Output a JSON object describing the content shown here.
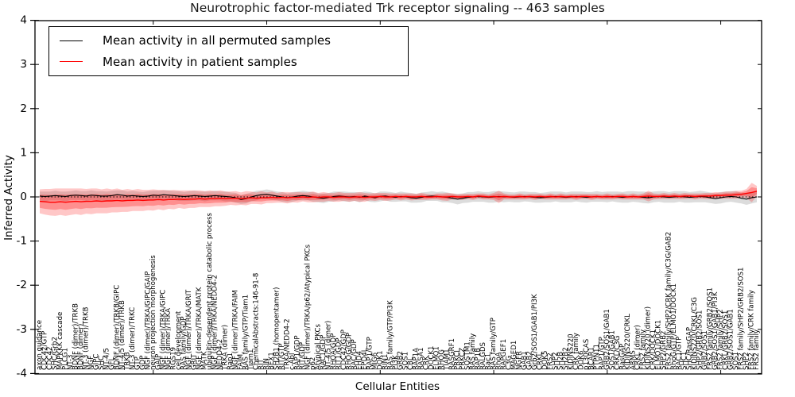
{
  "title": "Neurotrophic factor-mediated Trk receptor signaling -- 463 samples",
  "axes": {
    "ylabel": "Inferred Activity",
    "xlabel": "Cellular Entities",
    "yticks": [
      4,
      3,
      2,
      1,
      0,
      -1,
      -2,
      -3,
      -4
    ],
    "ylim": [
      -4,
      4
    ],
    "zero_line": 0
  },
  "legend": [
    {
      "label": "Mean activity in all permuted samples",
      "color": "#000000"
    },
    {
      "label": "Mean activity in patient samples",
      "color": "#ff0000"
    }
  ],
  "colors": {
    "permuted_line": "#000000",
    "patient_line": "#ff0000",
    "permuted_band": "#bfbfbf",
    "patient_band": "#ff0000",
    "frame": "#000000"
  },
  "chart_data": {
    "type": "line",
    "title": "Neurotrophic factor-mediated Trk receptor signaling -- 463 samples",
    "xlabel": "Cellular Entities",
    "ylabel": "Inferred Activity",
    "ylim": [
      -4,
      4
    ],
    "grid": false,
    "legend_position": "upper left",
    "categories": [
      "axon guidance",
      "CDC42/GTP",
      "CDC42",
      "SHC/Grb2",
      "MAPKKK cascade",
      "PLCG1",
      "NT-3",
      "BDNF (dimer)/TRKB",
      "BDNF (dimer)",
      "NT-3 (dimer)/TRKB",
      "NGF",
      "GIPC",
      "SHC",
      "NT-4/5",
      "GFL",
      "BDNF (dimer)/TRKB/GIPC",
      "NT-4/5 (dimer)/TRKB",
      "TRKB",
      "NT-3 (dimer)/TRKC",
      "GTP",
      "GDP",
      "NGF (dimer)/TRKA/GIPC/GAIP",
      "neuron projection morphogenesis",
      "GAIP",
      "NGF (dimer)/TRKA/GIPC",
      "NGF (dimer)/TRKA",
      "RGS19",
      "cell development",
      "RAS family/GDP",
      "NGF (dimer)/TRKA/GRIT",
      "GRIT",
      "NGF (dimer)/TRKA/MATK",
      "MATK",
      "ubiquitin-dependent protein catabolic process",
      "NGF (dimer)/TRKA/NEDD4-2",
      "NEDD4-2",
      "TRKA (dimer)",
      "Rap1",
      "NGF (dimer)/TRKA/FAIM",
      "FAIM",
      "RAS family/GTP/Tiam1",
      "Tiam1",
      "ChemicalAbstracts:146-91-8",
      "RIT",
      "RIN",
      "BEX1",
      "SH2B1 (homopentamer)",
      "RIT/GTP",
      "TRKA/NEDD4-2",
      "c-Abl",
      "RAP1/GDP",
      "RIT/GDP",
      "NGF (dimer)/TRKA/p62/Atypical PKCs",
      "p62",
      "Atypical PKCs",
      "RAC1/GDP",
      "NT-4/5 (dimer)",
      "RHOA/GDP",
      "RIT1/GDP",
      "CDC42/GDP",
      "RHOG/GDP",
      "RAC/GDP",
      "EHD4",
      "EPD4L",
      "RAP1/GTP",
      "MIG6",
      "DOK1",
      "RIN1",
      "RAS family/GTP/PI3K",
      "PI3K",
      "GRB2",
      "SOS1",
      "CBL",
      "RAP1A",
      "RASA1",
      "CRK",
      "DOCK1",
      "ELMO1",
      "RHOG",
      "TIAM1",
      "RASGRF1",
      "PRKCI",
      "PRKCZ",
      "SQSTM1",
      "RAS family",
      "RAP1B",
      "RALGDS",
      "Rac1",
      "RAS family/GTP",
      "RhoA",
      "RAPGEF1",
      "C3G",
      "MAGED1",
      "NGFR",
      "GAB1",
      "GAB2",
      "Grb2/SOS1/GAB1/PI3K",
      "CRKL",
      "DOK5",
      "FRS2",
      "SHP2",
      "SH2B",
      "SH2B2",
      "KIDINS220",
      "CRK family",
      "DOK6",
      "p130CAS",
      "BCAR1",
      "PTPN11",
      "RAP1/GTP",
      "GRB2/SOS1/GAB1",
      "SOS1/GAB1",
      "CRKL/C3G",
      "RasGAP",
      "KIDINS220/CRKL",
      "ARMS",
      "CRKL (dimer)",
      "FRS2 family",
      "KIDINS220 (dimer)",
      "CRK/DOCK1",
      "ELMO1/DOCK1",
      "SHP2/GRB2",
      "FRS2 family/SHP2/CRK family/C3G/GAB2",
      "RhoG/GTP/ELMO1/DOCK1",
      "RAC1/GTP",
      "SHC1",
      "SHC/RasGAP",
      "KIDINS220/CRKL/C3G",
      "SHP2/GRB2/SOS1",
      "GRB2/SOS1",
      "FRS2 family/GRB2/SOS1",
      "GRB2/SOS1/GAB1/PI3K",
      "FRS2 family/SHP2",
      "CRKL/GRB2/SOS1",
      "GRB2/SOS1/GAB1",
      "SOS1",
      "FRS2 family/SHP2/GRB2/SOS1",
      "SHP2",
      "FRS2 family/CRK family",
      "FRS2 family"
    ],
    "series": [
      {
        "name": "Mean activity in all permuted samples",
        "color": "#000000",
        "values": [
          0.02,
          0.01,
          0.02,
          0.03,
          0.02,
          0.01,
          0.03,
          0.04,
          0.03,
          0.02,
          0.04,
          0.03,
          0.02,
          0.02,
          0.03,
          0.05,
          0.04,
          0.02,
          0.03,
          0.02,
          0.01,
          0.02,
          0.04,
          0.03,
          0.05,
          0.04,
          0.03,
          0.02,
          0.01,
          0.02,
          0.03,
          0.02,
          0.01,
          0.02,
          0.03,
          0.02,
          0.01,
          0.0,
          -0.02,
          -0.06,
          -0.04,
          0.0,
          0.03,
          0.05,
          0.06,
          0.04,
          0.02,
          0.0,
          -0.02,
          0.0,
          0.02,
          0.03,
          0.02,
          0.0,
          -0.02,
          -0.03,
          -0.01,
          0.01,
          0.02,
          0.01,
          0.0,
          0.01,
          -0.01,
          0.02,
          0.0,
          -0.02,
          0.01,
          0.02,
          0.0,
          -0.01,
          0.01,
          0.0,
          -0.02,
          -0.03,
          -0.01,
          0.01,
          0.02,
          0.01,
          0.0,
          -0.01,
          -0.03,
          -0.05,
          -0.03,
          -0.01,
          0.0,
          0.01,
          0.0,
          -0.01,
          0.0,
          0.01,
          0.0,
          0.0,
          -0.01,
          0.0,
          0.01,
          0.0,
          -0.01,
          -0.02,
          -0.01,
          0.0,
          0.01,
          0.0,
          -0.01,
          0.0,
          0.01,
          0.0,
          -0.01,
          0.0,
          0.01,
          0.0,
          0.0,
          0.01,
          0.0,
          -0.01,
          0.0,
          0.01,
          0.0,
          -0.01,
          -0.02,
          0.0,
          0.01,
          0.0,
          -0.01,
          0.0,
          0.01,
          0.0,
          -0.01,
          0.0,
          0.01,
          0.0,
          -0.02,
          -0.04,
          -0.02,
          0.0,
          0.01,
          0.0,
          -0.03,
          -0.05,
          -0.02,
          0.0
        ],
        "std": [
          0.1,
          0.11,
          0.1,
          0.11,
          0.1,
          0.11,
          0.1,
          0.11,
          0.1,
          0.11,
          0.11,
          0.1,
          0.11,
          0.1,
          0.11,
          0.1,
          0.11,
          0.1,
          0.11,
          0.1,
          0.1,
          0.11,
          0.1,
          0.11,
          0.1,
          0.11,
          0.1,
          0.11,
          0.1,
          0.11,
          0.11,
          0.1,
          0.11,
          0.1,
          0.11,
          0.1,
          0.11,
          0.1,
          0.11,
          0.1,
          0.11,
          0.1,
          0.11,
          0.1,
          0.11,
          0.11,
          0.1,
          0.11,
          0.1,
          0.11,
          0.1,
          0.11,
          0.1,
          0.11,
          0.1,
          0.11,
          0.1,
          0.11,
          0.1,
          0.11,
          0.11,
          0.1,
          0.11,
          0.1,
          0.11,
          0.1,
          0.11,
          0.1,
          0.11,
          0.1,
          0.11,
          0.1,
          0.11,
          0.1,
          0.11,
          0.1,
          0.11,
          0.1,
          0.12,
          0.11,
          0.11,
          0.12,
          0.11,
          0.12,
          0.11,
          0.12,
          0.11,
          0.12,
          0.13,
          0.12,
          0.12,
          0.11,
          0.11,
          0.12,
          0.11,
          0.11,
          0.12,
          0.11,
          0.11,
          0.12,
          0.11,
          0.12,
          0.11,
          0.12,
          0.11,
          0.12,
          0.12,
          0.11,
          0.12,
          0.11,
          0.12,
          0.11,
          0.12,
          0.12,
          0.13,
          0.12,
          0.12,
          0.13,
          0.13,
          0.12,
          0.12,
          0.13,
          0.12,
          0.13,
          0.12,
          0.13,
          0.12,
          0.12,
          0.13,
          0.12,
          0.12,
          0.12,
          0.13,
          0.12,
          0.12,
          0.13,
          0.12,
          0.13,
          0.13,
          0.12
        ]
      },
      {
        "name": "Mean activity in patient samples",
        "color": "#ff0000",
        "values": [
          -0.1,
          -0.11,
          -0.12,
          -0.12,
          -0.11,
          -0.12,
          -0.11,
          -0.1,
          -0.11,
          -0.1,
          -0.1,
          -0.09,
          -0.1,
          -0.09,
          -0.09,
          -0.08,
          -0.09,
          -0.08,
          -0.08,
          -0.07,
          -0.08,
          -0.07,
          -0.07,
          -0.06,
          -0.07,
          -0.06,
          -0.06,
          -0.05,
          -0.06,
          -0.05,
          -0.05,
          -0.04,
          -0.05,
          -0.04,
          -0.04,
          -0.03,
          -0.04,
          -0.03,
          -0.03,
          -0.04,
          -0.03,
          -0.02,
          -0.03,
          -0.02,
          -0.02,
          -0.01,
          -0.02,
          -0.01,
          -0.02,
          -0.01,
          -0.01,
          0.0,
          -0.01,
          0.0,
          -0.01,
          0.0,
          0.0,
          -0.01,
          0.0,
          0.0,
          -0.01,
          0.0,
          0.0,
          -0.01,
          0.0,
          0.0,
          0.01,
          0.0,
          0.0,
          0.01,
          0.0,
          0.01,
          0.0,
          0.0,
          0.01,
          0.0,
          0.0,
          0.01,
          0.0,
          0.0,
          0.01,
          0.0,
          0.0,
          0.01,
          0.0,
          0.02,
          0.01,
          0.0,
          0.01,
          0.0,
          0.01,
          0.0,
          0.0,
          0.01,
          0.0,
          0.01,
          0.0,
          0.01,
          0.0,
          0.01,
          0.0,
          0.01,
          0.0,
          0.01,
          0.0,
          0.01,
          0.01,
          0.0,
          0.01,
          0.0,
          0.01,
          0.0,
          0.01,
          0.01,
          0.0,
          0.01,
          0.0,
          0.01,
          0.02,
          0.01,
          0.01,
          0.02,
          0.01,
          0.02,
          0.01,
          0.02,
          0.02,
          0.01,
          0.02,
          0.02,
          0.02,
          0.03,
          0.03,
          0.04,
          0.04,
          0.05,
          0.06,
          0.08,
          0.1,
          0.13
        ],
        "std": [
          0.27,
          0.29,
          0.3,
          0.31,
          0.3,
          0.31,
          0.3,
          0.29,
          0.3,
          0.28,
          0.29,
          0.28,
          0.27,
          0.28,
          0.26,
          0.27,
          0.25,
          0.26,
          0.24,
          0.25,
          0.24,
          0.23,
          0.24,
          0.22,
          0.23,
          0.21,
          0.22,
          0.2,
          0.21,
          0.2,
          0.2,
          0.19,
          0.18,
          0.19,
          0.17,
          0.18,
          0.16,
          0.15,
          0.16,
          0.14,
          0.16,
          0.14,
          0.13,
          0.15,
          0.12,
          0.13,
          0.11,
          0.12,
          0.13,
          0.11,
          0.12,
          0.1,
          0.11,
          0.12,
          0.1,
          0.11,
          0.09,
          0.1,
          0.11,
          0.09,
          0.1,
          0.09,
          0.11,
          0.1,
          0.08,
          0.09,
          0.08,
          0.09,
          0.08,
          0.07,
          0.08,
          0.07,
          0.08,
          0.07,
          0.08,
          0.07,
          0.06,
          0.07,
          0.08,
          0.09,
          0.07,
          0.06,
          0.07,
          0.06,
          0.07,
          0.06,
          0.07,
          0.06,
          0.08,
          0.14,
          0.07,
          0.06,
          0.06,
          0.07,
          0.06,
          0.06,
          0.07,
          0.06,
          0.06,
          0.07,
          0.06,
          0.07,
          0.06,
          0.06,
          0.07,
          0.06,
          0.06,
          0.07,
          0.06,
          0.06,
          0.07,
          0.06,
          0.06,
          0.07,
          0.06,
          0.07,
          0.06,
          0.07,
          0.12,
          0.07,
          0.06,
          0.07,
          0.06,
          0.07,
          0.06,
          0.07,
          0.06,
          0.07,
          0.06,
          0.07,
          0.07,
          0.08,
          0.07,
          0.08,
          0.08,
          0.09,
          0.08,
          0.1,
          0.22,
          0.12
        ]
      }
    ]
  }
}
